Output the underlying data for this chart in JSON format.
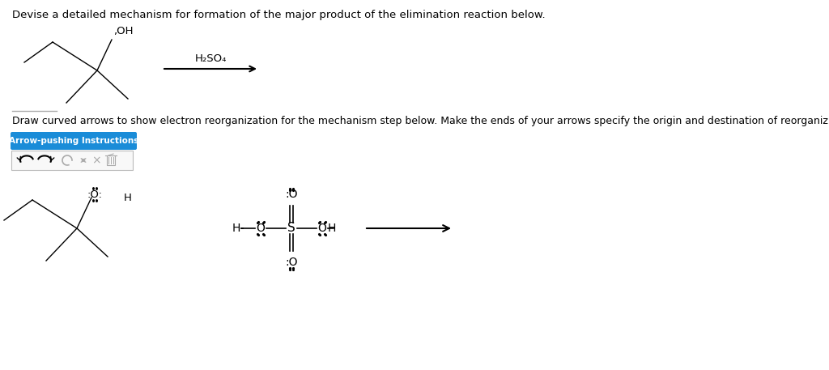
{
  "title_text": "Devise a detailed mechanism for formation of the major product of the elimination reaction below.",
  "subtitle_text": "Draw curved arrows to show electron reorganization for the mechanism step below. Make the ends of your arrows specify the origin and destination of reorganizing electrons.",
  "button_text": "Arrow-pushing Instructions",
  "button_color": "#1a8cd8",
  "button_text_color": "#ffffff",
  "background_color": "#ffffff",
  "text_color": "#000000",
  "divider_color": "#aaaaaa",
  "reagent_label": "H₂SO₄",
  "font_size_title": 9.5,
  "font_size_sub": 9.0,
  "font_size_chem": 10.5
}
